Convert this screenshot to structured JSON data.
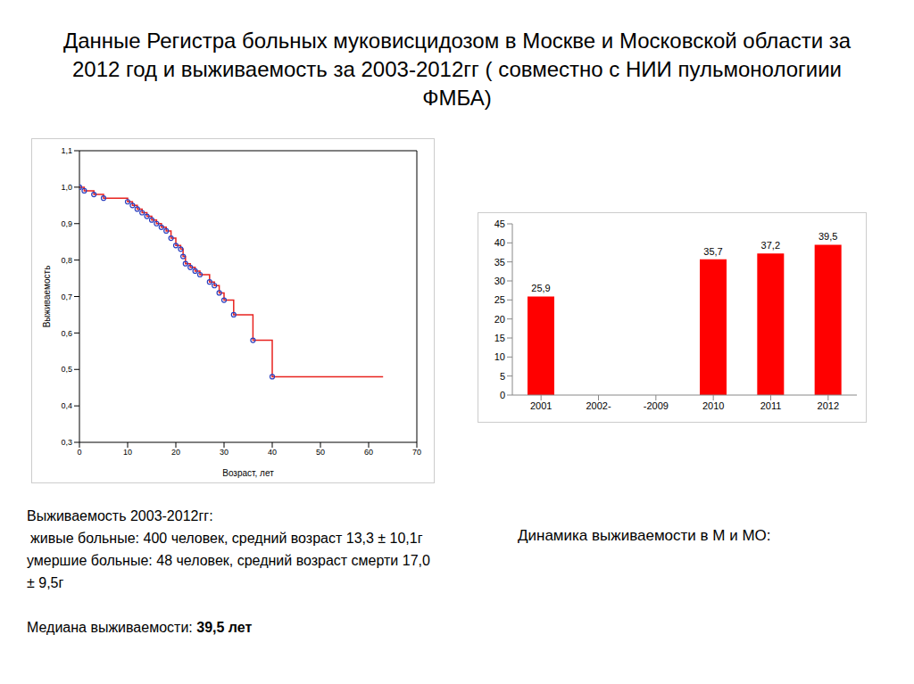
{
  "title": "Данные Регистра больных муковисцидозом в Москве и Московской области за 2012 год и выживаемость за 2003-2012гг ( совместно с НИИ пульмонологиии ФМБА)",
  "chart_data": [
    {
      "type": "line",
      "x_label": "Возраст, лет",
      "y_label": "Выживаемость",
      "xlim": [
        0,
        70
      ],
      "xticks": [
        0,
        10,
        20,
        30,
        40,
        50,
        60,
        70
      ],
      "ylim": [
        0.3,
        1.1
      ],
      "yticks": [
        {
          "value": 0.3,
          "label": "0,3"
        },
        {
          "value": 0.4,
          "label": "0,4"
        },
        {
          "value": 0.5,
          "label": "0,5"
        },
        {
          "value": 0.6,
          "label": "0,6"
        },
        {
          "value": 0.7,
          "label": "0,7"
        },
        {
          "value": 0.8,
          "label": "0,8"
        },
        {
          "value": 0.9,
          "label": "0,9"
        },
        {
          "value": 1.0,
          "label": "1,0"
        },
        {
          "value": 1.1,
          "label": "1,1"
        }
      ],
      "grid": false,
      "series": [
        {
          "type": "line",
          "line_style": "step",
          "color": "#e8231f",
          "x": [
            0,
            1,
            3,
            5,
            10,
            11,
            12,
            13,
            14,
            15,
            16,
            17,
            18,
            19,
            20,
            21,
            21.5,
            22,
            23,
            24,
            25,
            27,
            28,
            29,
            30,
            32,
            36,
            40,
            63
          ],
          "values": [
            1.0,
            0.99,
            0.98,
            0.97,
            0.96,
            0.95,
            0.94,
            0.93,
            0.92,
            0.91,
            0.9,
            0.89,
            0.88,
            0.86,
            0.84,
            0.83,
            0.81,
            0.79,
            0.78,
            0.77,
            0.76,
            0.74,
            0.73,
            0.71,
            0.69,
            0.65,
            0.58,
            0.48,
            0.48
          ]
        },
        {
          "type": "scatter",
          "marker": "circle",
          "color": "#2a3fbf",
          "x": [
            0,
            1,
            3,
            5,
            10,
            11,
            12,
            13,
            14,
            15,
            16,
            17,
            18,
            19,
            20,
            21,
            21.5,
            22,
            23,
            24,
            25,
            27,
            28,
            29,
            30,
            32,
            36,
            40
          ],
          "values": [
            1.0,
            0.99,
            0.98,
            0.97,
            0.96,
            0.95,
            0.94,
            0.93,
            0.92,
            0.91,
            0.9,
            0.89,
            0.88,
            0.86,
            0.84,
            0.83,
            0.81,
            0.79,
            0.78,
            0.77,
            0.76,
            0.74,
            0.73,
            0.71,
            0.69,
            0.65,
            0.58,
            0.48
          ]
        }
      ]
    },
    {
      "type": "bar",
      "categories": [
        "2001",
        "2002-",
        "-2009",
        "2010",
        "2011",
        "2012"
      ],
      "values": [
        25.9,
        null,
        null,
        35.7,
        37.2,
        39.5
      ],
      "value_labels": [
        "25,9",
        null,
        null,
        "35,7",
        "37,2",
        "39,5"
      ],
      "color": "#ff0000",
      "ylim": [
        0,
        45
      ],
      "yticks": [
        0,
        5,
        10,
        15,
        20,
        25,
        30,
        35,
        40,
        45
      ],
      "grid": false,
      "data_labels": true
    }
  ],
  "texts": {
    "survival": [
      "Выживаемость 2003-2012гг:",
      "живые больные: 400 человек, средний возраст 13,3 ± 10,1г",
      "умершие больные: 48 человек, средний возраст смерти 17,0 ± 9,5г"
    ],
    "median_label": "Медиана выживаемости:",
    "median_value": "39,5 лет",
    "dynamics": "Динамика выживаемости  в М и МО:"
  }
}
